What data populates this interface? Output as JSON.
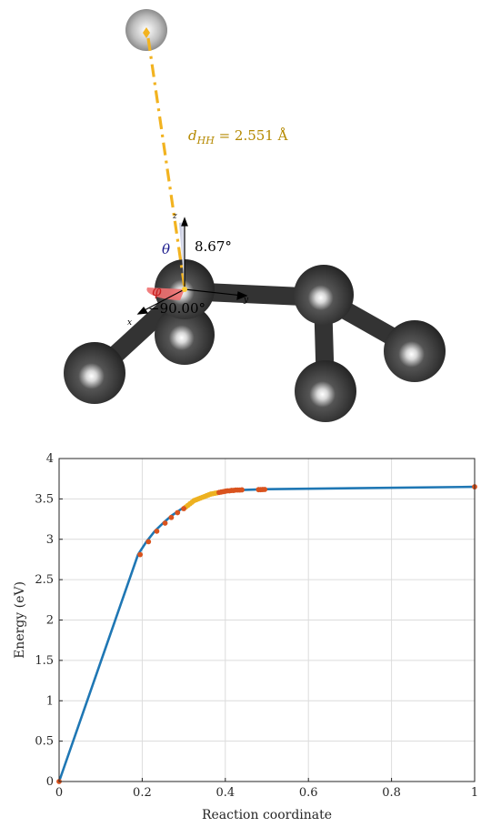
{
  "molecule": {
    "distance_label": "d",
    "distance_sub": "HH",
    "distance_value": " = 2.551 Å",
    "theta_symbol": "θ",
    "theta_value": "8.67°",
    "phi_symbol": "φ",
    "phi_value": "−90.00°",
    "axis_x": "x",
    "axis_y": "y",
    "axis_z": "z",
    "colors": {
      "bond_line": "#f2b320",
      "atom": "#3a3a3a",
      "label_gold": "#b58900",
      "theta_color": "#1a1a8c",
      "phi_fill": "#f07070"
    }
  },
  "chart_data": {
    "type": "line",
    "xlabel": "Reaction coordinate",
    "ylabel": "Energy (eV)",
    "xlim": [
      0,
      1
    ],
    "ylim": [
      0,
      4
    ],
    "xticks": [
      0,
      0.2,
      0.4,
      0.6,
      0.8,
      1
    ],
    "yticks": [
      0,
      0.5,
      1,
      1.5,
      2,
      2.5,
      3,
      3.5,
      4
    ],
    "grid": true,
    "series": [
      {
        "line_color": "#1f77b4",
        "x": [
          0,
          0.19,
          0.21,
          0.23,
          0.25,
          0.27,
          0.29,
          0.31,
          0.33,
          0.35,
          0.37,
          0.39,
          0.41,
          0.44,
          0.5,
          1.0
        ],
        "y": [
          0,
          2.81,
          2.97,
          3.1,
          3.2,
          3.29,
          3.36,
          3.43,
          3.49,
          3.53,
          3.57,
          3.59,
          3.6,
          3.61,
          3.62,
          3.65
        ]
      }
    ],
    "markers_red": {
      "color": "#d9531e",
      "x": [
        0,
        0.195,
        0.215,
        0.235,
        0.255,
        0.27,
        0.285,
        0.3,
        0.385,
        0.39,
        0.395,
        0.4,
        0.405,
        0.41,
        0.415,
        0.42,
        0.425,
        0.43,
        0.435,
        0.44,
        0.48,
        0.485,
        0.49,
        0.495,
        1.0
      ],
      "y": [
        0,
        2.81,
        2.97,
        3.1,
        3.2,
        3.27,
        3.33,
        3.38,
        3.58,
        3.585,
        3.59,
        3.595,
        3.6,
        3.6,
        3.605,
        3.605,
        3.61,
        3.61,
        3.61,
        3.612,
        3.615,
        3.615,
        3.616,
        3.617,
        3.65
      ]
    },
    "markers_yellow": {
      "color": "#edb120",
      "x": [
        0.305,
        0.31,
        0.315,
        0.32,
        0.325,
        0.33,
        0.335,
        0.34,
        0.345,
        0.35,
        0.355,
        0.36,
        0.365,
        0.37,
        0.375,
        0.38
      ],
      "y": [
        3.4,
        3.42,
        3.44,
        3.46,
        3.48,
        3.49,
        3.5,
        3.51,
        3.52,
        3.53,
        3.54,
        3.55,
        3.56,
        3.565,
        3.57,
        3.575
      ]
    }
  }
}
